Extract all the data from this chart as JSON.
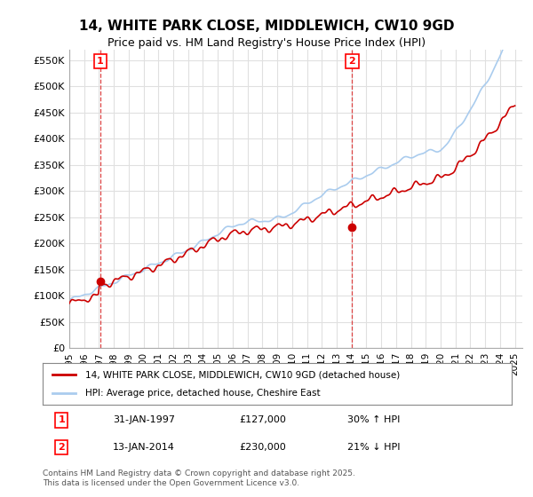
{
  "title": "14, WHITE PARK CLOSE, MIDDLEWICH, CW10 9GD",
  "subtitle": "Price paid vs. HM Land Registry's House Price Index (HPI)",
  "ylabel_ticks": [
    "£0",
    "£50K",
    "£100K",
    "£150K",
    "£200K",
    "£250K",
    "£300K",
    "£350K",
    "£400K",
    "£450K",
    "£500K",
    "£550K"
  ],
  "ytick_values": [
    0,
    50000,
    100000,
    150000,
    200000,
    250000,
    300000,
    350000,
    400000,
    450000,
    500000,
    550000
  ],
  "ylim": [
    0,
    570000
  ],
  "background_color": "#ffffff",
  "grid_color": "#e0e0e0",
  "sale1": {
    "label": "1",
    "date": "31-JAN-1997",
    "price": 127000,
    "note": "30% ↑ HPI",
    "x": 1997.08
  },
  "sale2": {
    "label": "2",
    "date": "13-JAN-2014",
    "price": 230000,
    "note": "21% ↓ HPI",
    "x": 2014.04
  },
  "legend_line1": "14, WHITE PARK CLOSE, MIDDLEWICH, CW10 9GD (detached house)",
  "legend_line2": "HPI: Average price, detached house, Cheshire East",
  "footer": "Contains HM Land Registry data © Crown copyright and database right 2025.\nThis data is licensed under the Open Government Licence v3.0.",
  "line_color_red": "#cc0000",
  "line_color_blue": "#aaccee",
  "vline_color": "#dd4444",
  "marker_color_red": "#cc0000",
  "marker_color_blue": "#aaaacc",
  "box_color": "#cc0000",
  "table_box_color": "#cc3333"
}
